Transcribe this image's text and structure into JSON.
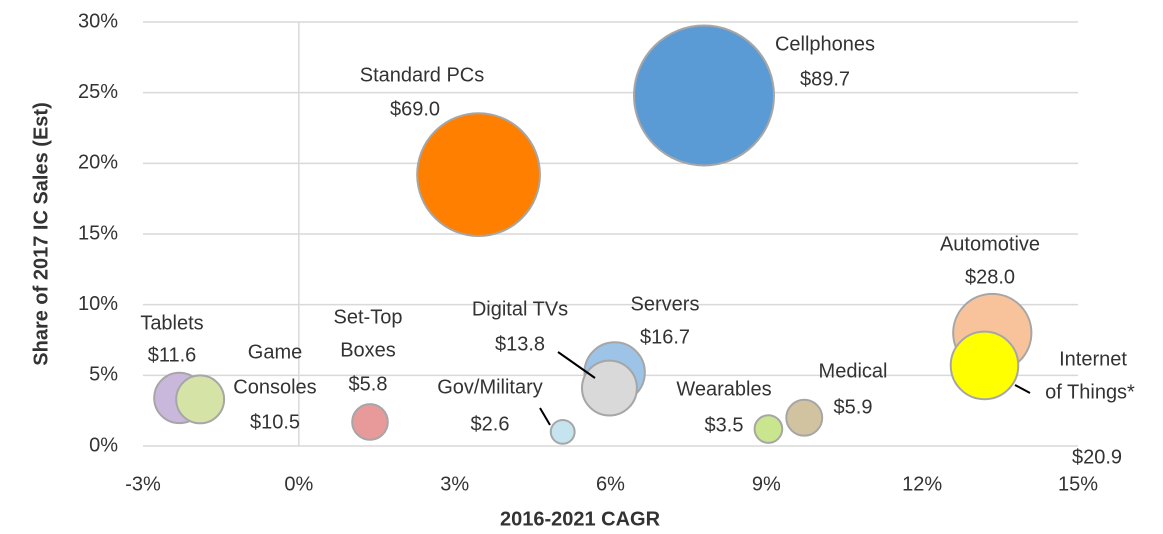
{
  "chart_data": {
    "type": "bubble",
    "xlabel": "2016-2021 CAGR",
    "ylabel": "Share of 2017 IC Sales (Est)",
    "xlim": [
      -3,
      15
    ],
    "xticks": [
      {
        "value": -3,
        "label": "-3%"
      },
      {
        "value": 0,
        "label": "0%"
      },
      {
        "value": 3,
        "label": "3%"
      },
      {
        "value": 6,
        "label": "6%"
      },
      {
        "value": 9,
        "label": "9%"
      },
      {
        "value": 12,
        "label": "12%"
      },
      {
        "value": 15,
        "label": "15%"
      }
    ],
    "ylim": [
      0,
      30
    ],
    "yticks": [
      {
        "value": 0,
        "label": "0%"
      },
      {
        "value": 5,
        "label": "5%"
      },
      {
        "value": 10,
        "label": "10%"
      },
      {
        "value": 15,
        "label": "15%"
      },
      {
        "value": 20,
        "label": "20%"
      },
      {
        "value": 25,
        "label": "25%"
      },
      {
        "value": 30,
        "label": "30%"
      }
    ],
    "grid": true,
    "labels": [
      [
        "Cellphones"
      ],
      [
        "Standard PCs"
      ],
      [
        "Automotive"
      ],
      [
        "Internet",
        "of Things*"
      ],
      [
        "Servers"
      ],
      [
        "Digital TVs"
      ],
      [
        "Tablets"
      ],
      [
        "Game",
        "Consoles"
      ],
      [
        "Set-Top",
        "Boxes"
      ],
      [
        "Gov/Military"
      ],
      [
        "Wearables"
      ],
      [
        "Medical"
      ]
    ],
    "x": [
      7.8,
      3.46,
      13.35,
      13.2,
      6.08,
      5.98,
      -2.3,
      -1.9,
      1.37,
      5.08,
      9.04,
      9.73
    ],
    "y": [
      24.8,
      19.2,
      8.0,
      5.7,
      5.2,
      4.1,
      3.4,
      3.3,
      1.7,
      1.0,
      1.2,
      2.0
    ],
    "values": [
      89.7,
      69.0,
      28.0,
      20.9,
      16.7,
      13.8,
      11.6,
      10.5,
      5.8,
      2.6,
      3.5,
      5.9
    ],
    "value_labels": [
      "$89.7",
      "$69.0",
      "$28.0",
      "$20.9",
      "$16.7",
      "$13.8",
      "$11.6",
      "$10.5",
      "$5.8",
      "$2.6",
      "$3.5",
      "$5.9"
    ],
    "colors": [
      "#5b9bd5",
      "#ff7f00",
      "#f8c39b",
      "#ffff00",
      "#9dc3e6",
      "#d9d9d9",
      "#c9b8dc",
      "#d5e3a6",
      "#e8999a",
      "#c5e4f0",
      "#c9e68f",
      "#d2c3a0"
    ]
  }
}
